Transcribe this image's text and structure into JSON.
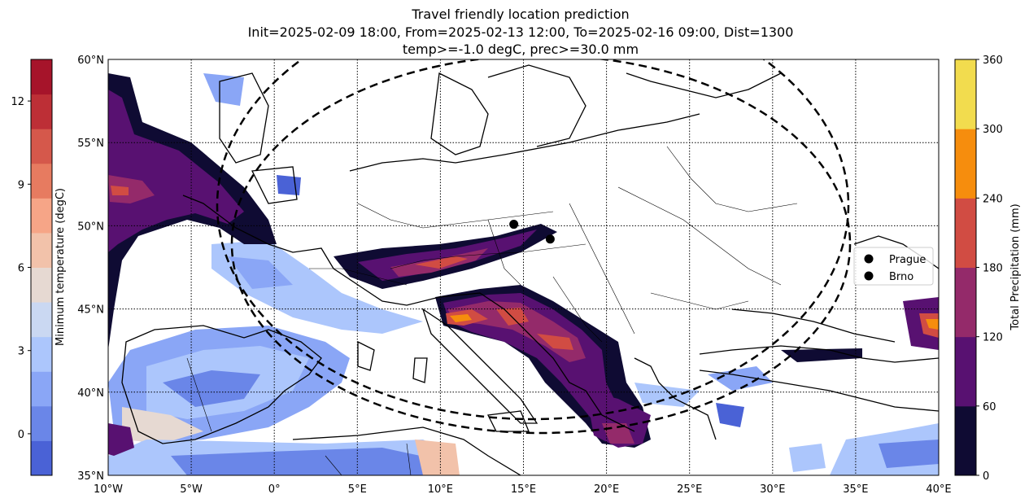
{
  "chart_data": {
    "type": "map",
    "title_lines": [
      "Travel friendly location prediction",
      "Init=2025-02-09 18:00, From=2025-02-13 12:00, To=2025-02-16 09:00, Dist=1300",
      "temp>=-1.0 degC, prec>=30.0 mm"
    ],
    "lon_range": [
      -10,
      40
    ],
    "lat_range": [
      35,
      60
    ],
    "lon_ticks": [
      "10°W",
      "5°W",
      "0°",
      "5°E",
      "10°E",
      "15°E",
      "20°E",
      "25°E",
      "30°E",
      "35°E",
      "40°E"
    ],
    "lat_ticks": [
      "35°N",
      "40°N",
      "45°N",
      "50°N",
      "55°N",
      "60°N"
    ],
    "grid": true,
    "cities": [
      {
        "name": "Prague",
        "lon": 14.42,
        "lat": 50.09
      },
      {
        "name": "Brno",
        "lon": 16.61,
        "lat": 49.2
      }
    ],
    "legend_position": "right",
    "left_colorbar": {
      "label": "Minimum temperature (degC)",
      "min": -1.5,
      "max": 13.5,
      "ticks": [
        "0",
        "3",
        "6",
        "9",
        "12"
      ],
      "colors": [
        "#4a62d6",
        "#6a86e8",
        "#8aa6f6",
        "#acc6fc",
        "#cad8f2",
        "#e6d9d2",
        "#f2c2aa",
        "#f6a587",
        "#e77b60",
        "#d5584b",
        "#bd2f36",
        "#a6142a"
      ]
    },
    "right_colorbar": {
      "label": "Total Precipitation (mm)",
      "min": 0,
      "max": 360,
      "ticks": [
        "0",
        "60",
        "120",
        "180",
        "240",
        "300",
        "360"
      ],
      "colors": [
        "#0f0b33",
        "#581171",
        "#942a6a",
        "#d14c43",
        "#f68d0d",
        "#f2dc4e"
      ]
    },
    "range_circles_center": {
      "lon": 15.5,
      "lat": 49.6
    }
  }
}
